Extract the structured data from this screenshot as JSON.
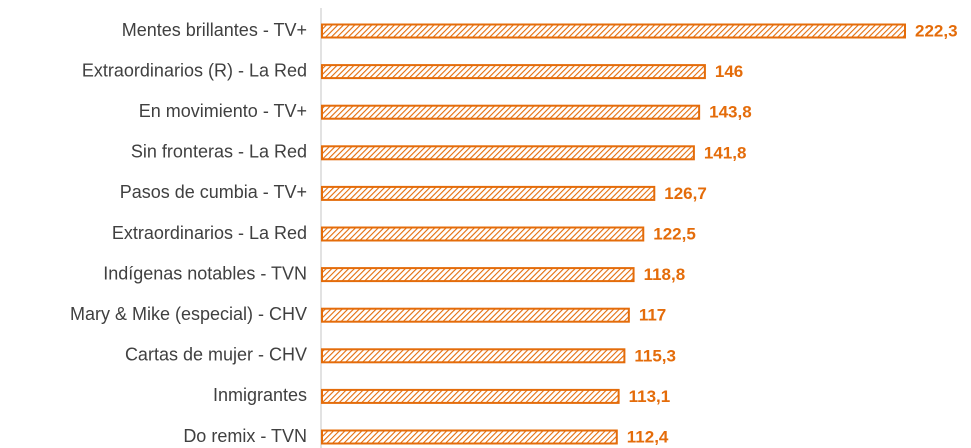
{
  "chart_data": {
    "type": "bar",
    "orientation": "horizontal",
    "categories": [
      "Mentes brillantes - TV+",
      "Extraordinarios (R) - La Red",
      "En movimiento - TV+",
      "Sin fronteras - La Red",
      "Pasos de cumbia - TV+",
      "Extraordinarios - La Red",
      "Indígenas notables - TVN",
      "Mary & Mike (especial) - CHV",
      "Cartas de mujer - CHV",
      "Inmigrantes",
      "Do remix - TVN"
    ],
    "values": [
      222.3,
      146,
      143.8,
      141.8,
      126.7,
      122.5,
      118.8,
      117,
      115.3,
      113.1,
      112.4
    ],
    "value_labels": [
      "222,3",
      "146",
      "143,8",
      "141,8",
      "126,7",
      "122,5",
      "118,8",
      "117",
      "115,3",
      "113,1",
      "112,4"
    ],
    "color": "#e46c0a"
  }
}
